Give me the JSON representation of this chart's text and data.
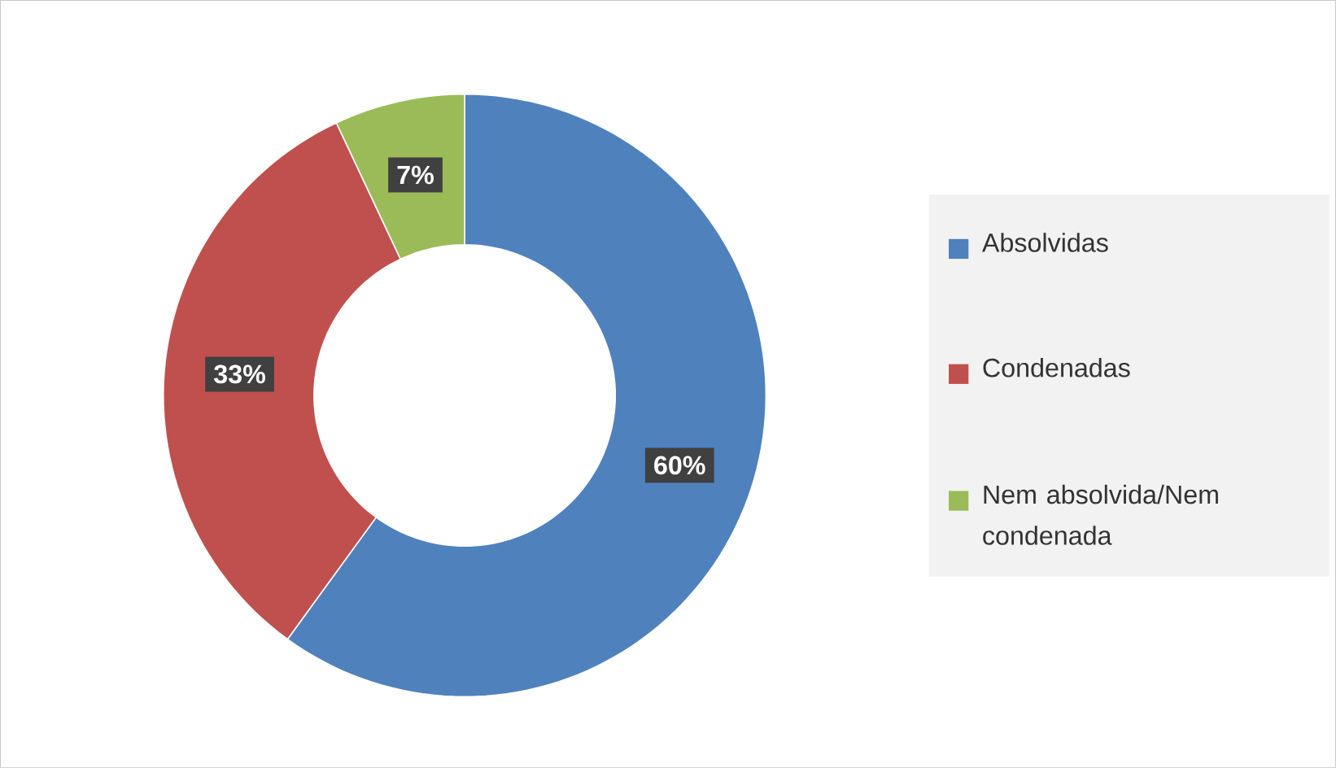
{
  "chart_data": {
    "type": "donut",
    "categories": [
      "Absolvidas",
      "Condenadas",
      "Nem absolvida/Nem condenada"
    ],
    "values": [
      60,
      33,
      7
    ],
    "colors": [
      "#4f81bd",
      "#c0504d",
      "#9bbb59"
    ],
    "value_labels": [
      "60%",
      "33%",
      "7%"
    ],
    "legend": "right"
  }
}
